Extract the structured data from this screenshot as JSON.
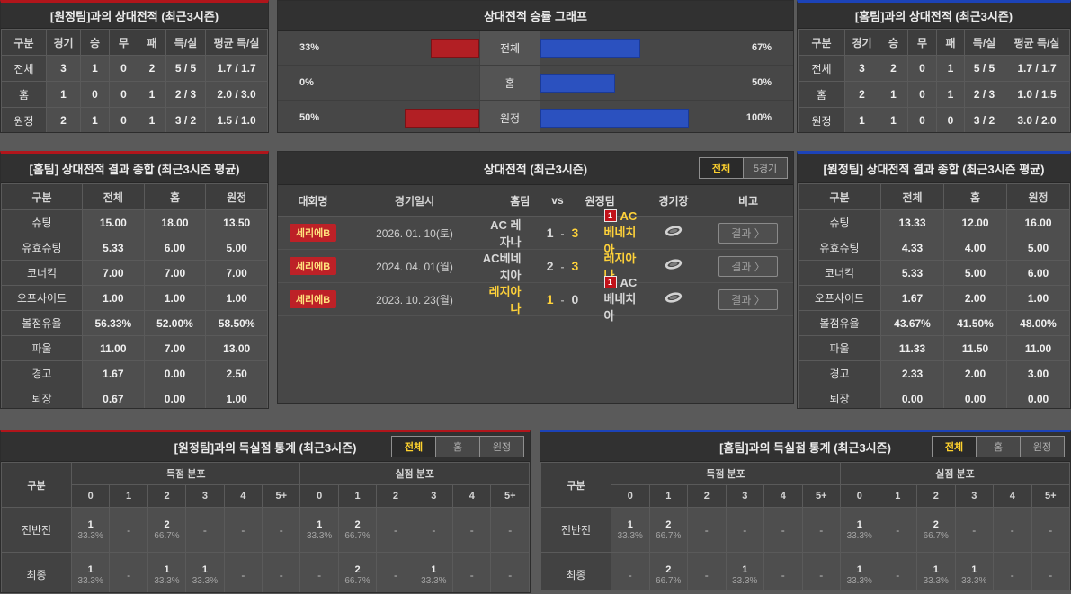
{
  "colors": {
    "accent_red": "#b1151b",
    "accent_blue": "#1c43b8",
    "bar_red": "#b21f24",
    "bar_blue": "#2b51bf",
    "highlight_yellow": "#ffd23a"
  },
  "h2h_away": {
    "title": "[원정팀]과의 상대전적 (최근3시즌)",
    "headers": [
      "구분",
      "경기",
      "승",
      "무",
      "패",
      "득/실",
      "평균 득/실"
    ],
    "rows": [
      [
        "전체",
        "3",
        "1",
        "0",
        "2",
        "5 / 5",
        "1.7 / 1.7"
      ],
      [
        "홈",
        "1",
        "0",
        "0",
        "1",
        "2 / 3",
        "2.0 / 3.0"
      ],
      [
        "원정",
        "2",
        "1",
        "0",
        "1",
        "3 / 2",
        "1.5 / 1.0"
      ]
    ]
  },
  "h2h_home": {
    "title": "[홈팀]과의 상대전적 (최근3시즌)",
    "headers": [
      "구분",
      "경기",
      "승",
      "무",
      "패",
      "득/실",
      "평균 득/실"
    ],
    "rows": [
      [
        "전체",
        "3",
        "2",
        "0",
        "1",
        "5 / 5",
        "1.7 / 1.7"
      ],
      [
        "홈",
        "2",
        "1",
        "0",
        "1",
        "2 / 3",
        "1.0 / 1.5"
      ],
      [
        "원정",
        "1",
        "1",
        "0",
        "0",
        "3 / 2",
        "3.0 / 2.0"
      ]
    ]
  },
  "win_graph": {
    "title": "상대전적 승률 그래프",
    "rows": [
      {
        "label": "전체",
        "away_pct": "33%",
        "away_val": 33,
        "home_pct": "67%",
        "home_val": 67
      },
      {
        "label": "홈",
        "away_pct": "0%",
        "away_val": 0,
        "home_pct": "50%",
        "home_val": 50
      },
      {
        "label": "원정",
        "away_pct": "50%",
        "away_val": 50,
        "home_pct": "100%",
        "home_val": 100
      }
    ]
  },
  "summary_home": {
    "title": "[홈팀] 상대전적 결과 종합 (최근3시즌 평균)",
    "headers": [
      "구분",
      "전체",
      "홈",
      "원정"
    ],
    "rows": [
      [
        "슈팅",
        "15.00",
        "18.00",
        "13.50"
      ],
      [
        "유효슈팅",
        "5.33",
        "6.00",
        "5.00"
      ],
      [
        "코너킥",
        "7.00",
        "7.00",
        "7.00"
      ],
      [
        "오프사이드",
        "1.00",
        "1.00",
        "1.00"
      ],
      [
        "볼점유율",
        "56.33%",
        "52.00%",
        "58.50%"
      ],
      [
        "파울",
        "11.00",
        "7.00",
        "13.00"
      ],
      [
        "경고",
        "1.67",
        "0.00",
        "2.50"
      ],
      [
        "퇴장",
        "0.67",
        "0.00",
        "1.00"
      ]
    ]
  },
  "summary_away": {
    "title": "[원정팀] 상대전적 결과 종합 (최근3시즌 평균)",
    "headers": [
      "구분",
      "전체",
      "홈",
      "원정"
    ],
    "rows": [
      [
        "슈팅",
        "13.33",
        "12.00",
        "16.00"
      ],
      [
        "유효슈팅",
        "4.33",
        "4.00",
        "5.00"
      ],
      [
        "코너킥",
        "5.33",
        "5.00",
        "6.00"
      ],
      [
        "오프사이드",
        "1.67",
        "2.00",
        "1.00"
      ],
      [
        "볼점유율",
        "43.67%",
        "41.50%",
        "48.00%"
      ],
      [
        "파울",
        "11.33",
        "11.50",
        "11.00"
      ],
      [
        "경고",
        "2.33",
        "2.00",
        "3.00"
      ],
      [
        "퇴장",
        "0.00",
        "0.00",
        "0.00"
      ]
    ]
  },
  "matches": {
    "title": "상대전적 (최근3시즌)",
    "tabs": [
      {
        "label": "전체",
        "active": true
      },
      {
        "label": "5경기",
        "active": false
      }
    ],
    "headers": {
      "league": "대회명",
      "date": "경기일시",
      "home": "홈팀",
      "vs": "vs",
      "away": "원정팀",
      "venue": "경기장",
      "note": "비고"
    },
    "result_button": "결과 〉",
    "rows": [
      {
        "league": "세리에B",
        "date": "2026. 01. 10(토)",
        "home": "AC 레자나",
        "home_score": "1",
        "away_score": "3",
        "away": "AC베네치아",
        "winner": "away",
        "red_card": {
          "side": "away",
          "count": "1"
        }
      },
      {
        "league": "세리에B",
        "date": "2024. 04. 01(월)",
        "home": "AC베네치아",
        "home_score": "2",
        "away_score": "3",
        "away": "레지아나",
        "winner": "away",
        "red_card": null
      },
      {
        "league": "세리에B",
        "date": "2023. 10. 23(월)",
        "home": "레지아나",
        "home_score": "1",
        "away_score": "0",
        "away": "AC베네치아",
        "winner": "home",
        "red_card": {
          "side": "away",
          "count": "1"
        }
      }
    ]
  },
  "goals_away": {
    "title": "[원정팀]과의 득실점 통계 (최근3시즌)",
    "tabs": [
      {
        "label": "전체",
        "active": true
      },
      {
        "label": "홈",
        "active": false
      },
      {
        "label": "원정",
        "active": false
      }
    ],
    "corner": "구분",
    "group_scored": "득점 분포",
    "group_conceded": "실점 분포",
    "bins": [
      "0",
      "1",
      "2",
      "3",
      "4",
      "5+"
    ],
    "empty": "-",
    "rows": [
      {
        "label": "전반전",
        "scored": [
          [
            "1",
            "33.3%"
          ],
          null,
          [
            "2",
            "66.7%"
          ],
          null,
          null,
          null
        ],
        "conceded": [
          [
            "1",
            "33.3%"
          ],
          [
            "2",
            "66.7%"
          ],
          null,
          null,
          null,
          null
        ]
      },
      {
        "label": "최종",
        "scored": [
          [
            "1",
            "33.3%"
          ],
          null,
          [
            "1",
            "33.3%"
          ],
          [
            "1",
            "33.3%"
          ],
          null,
          null
        ],
        "conceded": [
          null,
          [
            "2",
            "66.7%"
          ],
          null,
          [
            "1",
            "33.3%"
          ],
          null,
          null
        ]
      }
    ]
  },
  "goals_home": {
    "title": "[홈팀]과의 득실점 통계 (최근3시즌)",
    "tabs": [
      {
        "label": "전체",
        "active": true
      },
      {
        "label": "홈",
        "active": false
      },
      {
        "label": "원정",
        "active": false
      }
    ],
    "corner": "구분",
    "group_scored": "득점 분포",
    "group_conceded": "실점 분포",
    "bins": [
      "0",
      "1",
      "2",
      "3",
      "4",
      "5+"
    ],
    "empty": "-",
    "rows": [
      {
        "label": "전반전",
        "scored": [
          [
            "1",
            "33.3%"
          ],
          [
            "2",
            "66.7%"
          ],
          null,
          null,
          null,
          null
        ],
        "conceded": [
          [
            "1",
            "33.3%"
          ],
          null,
          [
            "2",
            "66.7%"
          ],
          null,
          null,
          null
        ]
      },
      {
        "label": "최종",
        "scored": [
          null,
          [
            "2",
            "66.7%"
          ],
          null,
          [
            "1",
            "33.3%"
          ],
          null,
          null
        ],
        "conceded": [
          [
            "1",
            "33.3%"
          ],
          null,
          [
            "1",
            "33.3%"
          ],
          [
            "1",
            "33.3%"
          ],
          null,
          null
        ]
      }
    ]
  }
}
